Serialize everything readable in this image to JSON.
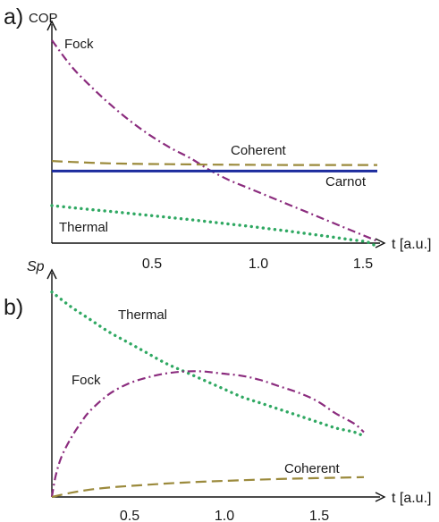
{
  "chart_data": [
    {
      "type": "line",
      "panel_label": "a)",
      "xlabel": "t [a.u.]",
      "ylabel": "COP",
      "xlim": [
        0,
        1.65
      ],
      "ylim": [
        0,
        1
      ],
      "xticks": [
        0.5,
        1.0,
        1.5
      ],
      "xtick_labels": [
        "0.5",
        "1.0",
        "1.5"
      ],
      "y_ticks_shown": false,
      "grid": false,
      "legend": "labels placed next to curves",
      "series": [
        {
          "name": "Fock",
          "style": "dash-dot",
          "color": "#8b2c7e",
          "x": [
            0,
            0.1,
            0.2,
            0.3,
            0.4,
            0.5,
            0.6,
            0.7,
            0.8,
            0.9,
            1.0,
            1.1,
            1.2,
            1.3,
            1.4,
            1.5,
            1.6,
            1.65
          ],
          "y": [
            1.0,
            0.87,
            0.77,
            0.68,
            0.6,
            0.53,
            0.47,
            0.42,
            0.36,
            0.31,
            0.27,
            0.23,
            0.19,
            0.15,
            0.11,
            0.07,
            0.03,
            0.01
          ]
        },
        {
          "name": "Coherent",
          "style": "dashed",
          "color": "#9b8a3c",
          "x": [
            0,
            0.1,
            0.2,
            0.3,
            0.4,
            0.5,
            0.6,
            0.7,
            0.8,
            1.0,
            1.2,
            1.4,
            1.65
          ],
          "y": [
            0.405,
            0.4,
            0.396,
            0.393,
            0.391,
            0.39,
            0.389,
            0.388,
            0.387,
            0.386,
            0.385,
            0.385,
            0.385
          ]
        },
        {
          "name": "Carnot",
          "style": "solid",
          "color": "#1c2b9e",
          "x": [
            0,
            1.65
          ],
          "y": [
            0.355,
            0.355
          ]
        },
        {
          "name": "Thermal",
          "style": "dotted",
          "color": "#2fa862",
          "x": [
            0,
            0.1,
            0.2,
            0.3,
            0.4,
            0.5,
            0.6,
            0.7,
            0.8,
            0.9,
            1.0,
            1.1,
            1.2,
            1.3,
            1.4,
            1.5,
            1.6,
            1.65
          ],
          "y": [
            0.185,
            0.175,
            0.165,
            0.156,
            0.146,
            0.136,
            0.126,
            0.116,
            0.105,
            0.094,
            0.083,
            0.071,
            0.059,
            0.046,
            0.033,
            0.019,
            0.005,
            -0.02
          ]
        }
      ],
      "annotations": [
        {
          "text": "Fock",
          "series": "Fock"
        },
        {
          "text": "Coherent",
          "series": "Coherent"
        },
        {
          "text": "Carnot",
          "series": "Carnot"
        },
        {
          "text": "Thermal",
          "series": "Thermal"
        }
      ]
    },
    {
      "type": "line",
      "panel_label": "b)",
      "xlabel": "t [a.u.]",
      "ylabel": "Sp",
      "xlim": [
        0,
        1.65
      ],
      "ylim": [
        0,
        1
      ],
      "xticks": [
        0.5,
        1.0,
        1.5
      ],
      "xtick_labels": [
        "0.5",
        "1.0",
        "1.5"
      ],
      "y_ticks_shown": false,
      "grid": false,
      "legend": "labels placed next to curves",
      "series": [
        {
          "name": "Thermal",
          "style": "dotted",
          "color": "#2fa862",
          "x": [
            0,
            0.1,
            0.2,
            0.3,
            0.4,
            0.5,
            0.6,
            0.7,
            0.8,
            0.9,
            1.0,
            1.1,
            1.2,
            1.3,
            1.4,
            1.5,
            1.6,
            1.65
          ],
          "y": [
            0.98,
            0.91,
            0.85,
            0.79,
            0.74,
            0.69,
            0.64,
            0.6,
            0.56,
            0.52,
            0.48,
            0.45,
            0.42,
            0.39,
            0.36,
            0.33,
            0.31,
            0.29
          ]
        },
        {
          "name": "Fock",
          "style": "dash-dot",
          "color": "#8b2c7e",
          "x": [
            0,
            0.02,
            0.05,
            0.1,
            0.15,
            0.2,
            0.3,
            0.4,
            0.5,
            0.6,
            0.7,
            0.8,
            0.9,
            1.0,
            1.1,
            1.2,
            1.3,
            1.4,
            1.5,
            1.6,
            1.65
          ],
          "y": [
            0,
            0.1,
            0.19,
            0.28,
            0.35,
            0.41,
            0.49,
            0.54,
            0.57,
            0.59,
            0.6,
            0.6,
            0.59,
            0.58,
            0.56,
            0.53,
            0.5,
            0.46,
            0.4,
            0.35,
            0.31
          ]
        },
        {
          "name": "Coherent",
          "style": "dashed",
          "color": "#9b8a3c",
          "x": [
            0,
            0.1,
            0.2,
            0.3,
            0.4,
            0.5,
            0.6,
            0.7,
            0.8,
            1.0,
            1.2,
            1.4,
            1.65
          ],
          "y": [
            0,
            0.02,
            0.035,
            0.045,
            0.052,
            0.058,
            0.064,
            0.069,
            0.073,
            0.08,
            0.086,
            0.09,
            0.095
          ]
        }
      ],
      "annotations": [
        {
          "text": "Thermal",
          "series": "Thermal"
        },
        {
          "text": "Fock",
          "series": "Fock"
        },
        {
          "text": "Coherent",
          "series": "Coherent"
        }
      ]
    }
  ]
}
